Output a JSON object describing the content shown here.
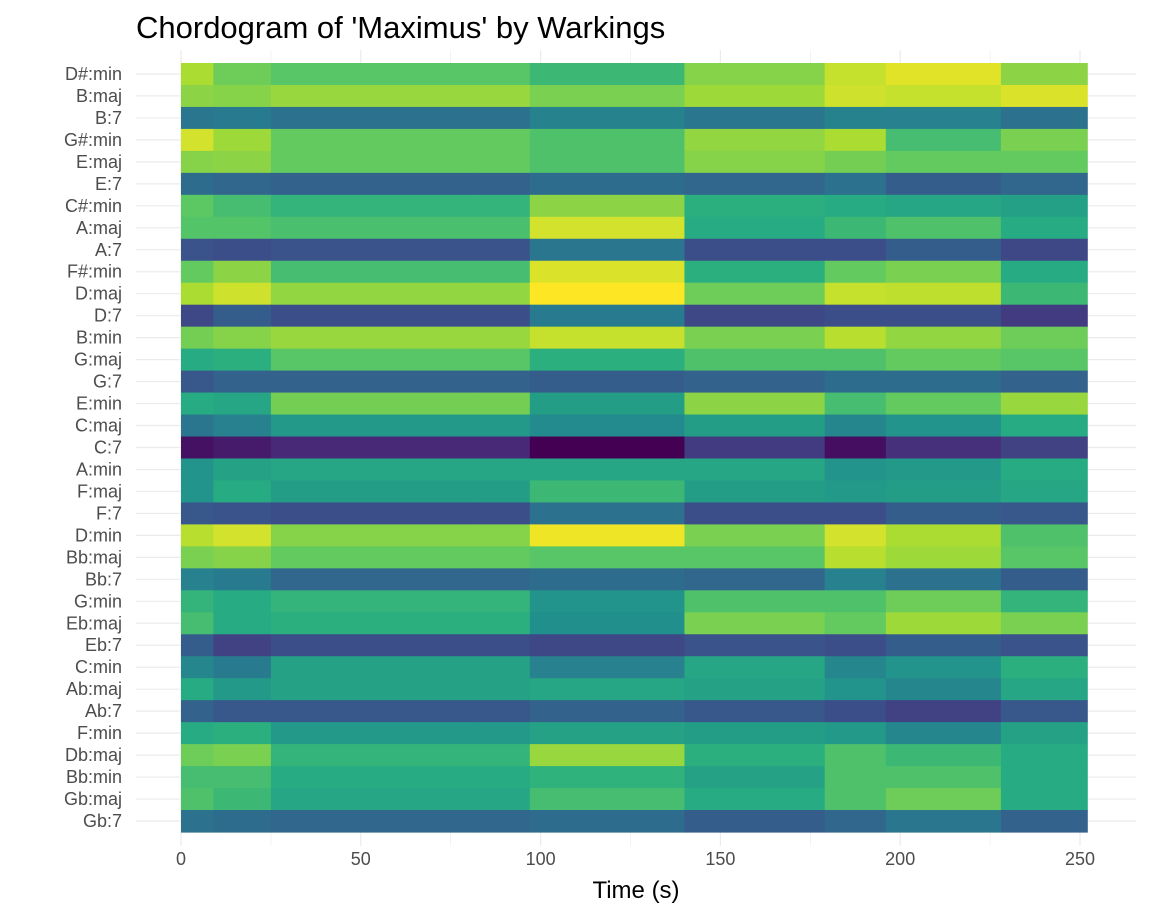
{
  "chart_data": {
    "type": "heatmap",
    "title": "Chordogram of 'Maximus' by Warkings",
    "xlabel": "Time (s)",
    "ylabel": "",
    "xlim": [
      0,
      252
    ],
    "x_ticks": [
      0,
      50,
      100,
      150,
      200,
      250
    ],
    "x_tick_labels": [
      "0",
      "50",
      "100",
      "150",
      "200",
      "250"
    ],
    "grid": "on",
    "colormap": "viridis",
    "time_segments": [
      0,
      9,
      25,
      82,
      97,
      140,
      179,
      196,
      228,
      252
    ],
    "chords": [
      "D#:min",
      "B:maj",
      "B:7",
      "G#:min",
      "E:maj",
      "E:7",
      "C#:min",
      "A:maj",
      "A:7",
      "F#:min",
      "D:maj",
      "D:7",
      "B:min",
      "G:maj",
      "G:7",
      "E:min",
      "C:maj",
      "C:7",
      "A:min",
      "F:maj",
      "F:7",
      "D:min",
      "Bb:maj",
      "Bb:7",
      "G:min",
      "Eb:maj",
      "Eb:7",
      "C:min",
      "Ab:maj",
      "Ab:7",
      "F:min",
      "Db:maj",
      "Bb:min",
      "Gb:maj",
      "Gb:7"
    ],
    "values": [
      [
        0.88,
        0.78,
        0.74,
        0.74,
        0.68,
        0.82,
        0.92,
        0.96,
        0.83,
        0.7
      ],
      [
        0.83,
        0.82,
        0.85,
        0.85,
        0.8,
        0.86,
        0.93,
        0.92,
        0.95,
        0.7
      ],
      [
        0.4,
        0.42,
        0.38,
        0.38,
        0.45,
        0.4,
        0.45,
        0.44,
        0.38,
        0.34
      ],
      [
        0.94,
        0.86,
        0.76,
        0.76,
        0.72,
        0.84,
        0.88,
        0.7,
        0.8,
        0.68
      ],
      [
        0.82,
        0.83,
        0.76,
        0.76,
        0.72,
        0.82,
        0.79,
        0.76,
        0.76,
        0.74
      ],
      [
        0.36,
        0.34,
        0.32,
        0.32,
        0.36,
        0.34,
        0.38,
        0.3,
        0.34,
        0.34
      ],
      [
        0.75,
        0.7,
        0.66,
        0.66,
        0.83,
        0.64,
        0.62,
        0.6,
        0.57,
        0.72
      ],
      [
        0.73,
        0.73,
        0.71,
        0.71,
        0.94,
        0.62,
        0.68,
        0.72,
        0.62,
        0.75
      ],
      [
        0.26,
        0.24,
        0.26,
        0.26,
        0.4,
        0.24,
        0.24,
        0.3,
        0.22,
        0.28
      ],
      [
        0.76,
        0.83,
        0.7,
        0.7,
        0.95,
        0.64,
        0.76,
        0.8,
        0.62,
        0.74
      ],
      [
        0.88,
        0.93,
        0.84,
        0.84,
        1.0,
        0.78,
        0.92,
        0.91,
        0.68,
        0.84
      ],
      [
        0.22,
        0.3,
        0.24,
        0.24,
        0.42,
        0.22,
        0.24,
        0.24,
        0.18,
        0.24
      ],
      [
        0.79,
        0.82,
        0.85,
        0.85,
        0.92,
        0.8,
        0.9,
        0.84,
        0.78,
        0.74
      ],
      [
        0.62,
        0.64,
        0.74,
        0.74,
        0.64,
        0.72,
        0.72,
        0.76,
        0.74,
        0.64
      ],
      [
        0.28,
        0.32,
        0.32,
        0.32,
        0.3,
        0.32,
        0.36,
        0.36,
        0.32,
        0.3
      ],
      [
        0.62,
        0.6,
        0.79,
        0.79,
        0.56,
        0.83,
        0.7,
        0.76,
        0.85,
        0.66
      ],
      [
        0.4,
        0.44,
        0.54,
        0.54,
        0.48,
        0.56,
        0.46,
        0.52,
        0.62,
        0.52
      ],
      [
        0.05,
        0.08,
        0.12,
        0.12,
        0.0,
        0.18,
        0.04,
        0.14,
        0.2,
        0.12
      ],
      [
        0.52,
        0.58,
        0.6,
        0.6,
        0.6,
        0.6,
        0.52,
        0.54,
        0.62,
        0.62
      ],
      [
        0.52,
        0.62,
        0.56,
        0.56,
        0.68,
        0.56,
        0.54,
        0.56,
        0.6,
        0.64
      ],
      [
        0.28,
        0.26,
        0.24,
        0.24,
        0.38,
        0.24,
        0.24,
        0.3,
        0.28,
        0.28
      ],
      [
        0.9,
        0.94,
        0.82,
        0.82,
        0.98,
        0.8,
        0.94,
        0.88,
        0.72,
        0.88
      ],
      [
        0.8,
        0.82,
        0.76,
        0.76,
        0.74,
        0.74,
        0.9,
        0.86,
        0.74,
        0.78
      ],
      [
        0.44,
        0.42,
        0.34,
        0.34,
        0.36,
        0.34,
        0.44,
        0.38,
        0.3,
        0.42
      ],
      [
        0.66,
        0.62,
        0.66,
        0.66,
        0.52,
        0.72,
        0.72,
        0.78,
        0.66,
        0.66
      ],
      [
        0.7,
        0.62,
        0.64,
        0.64,
        0.5,
        0.8,
        0.76,
        0.86,
        0.8,
        0.62
      ],
      [
        0.3,
        0.2,
        0.24,
        0.24,
        0.22,
        0.26,
        0.24,
        0.3,
        0.26,
        0.24
      ],
      [
        0.46,
        0.42,
        0.58,
        0.58,
        0.44,
        0.6,
        0.46,
        0.52,
        0.64,
        0.5
      ],
      [
        0.62,
        0.54,
        0.58,
        0.58,
        0.6,
        0.58,
        0.52,
        0.46,
        0.6,
        0.58
      ],
      [
        0.32,
        0.28,
        0.28,
        0.28,
        0.32,
        0.28,
        0.24,
        0.2,
        0.28,
        0.26
      ],
      [
        0.62,
        0.64,
        0.54,
        0.54,
        0.58,
        0.56,
        0.54,
        0.46,
        0.58,
        0.62
      ],
      [
        0.78,
        0.8,
        0.66,
        0.66,
        0.85,
        0.64,
        0.72,
        0.68,
        0.62,
        0.78
      ],
      [
        0.7,
        0.7,
        0.62,
        0.62,
        0.65,
        0.58,
        0.72,
        0.72,
        0.62,
        0.68
      ],
      [
        0.72,
        0.68,
        0.6,
        0.6,
        0.7,
        0.62,
        0.72,
        0.78,
        0.62,
        0.64
      ],
      [
        0.38,
        0.36,
        0.34,
        0.34,
        0.36,
        0.3,
        0.34,
        0.4,
        0.32,
        0.32
      ]
    ]
  }
}
